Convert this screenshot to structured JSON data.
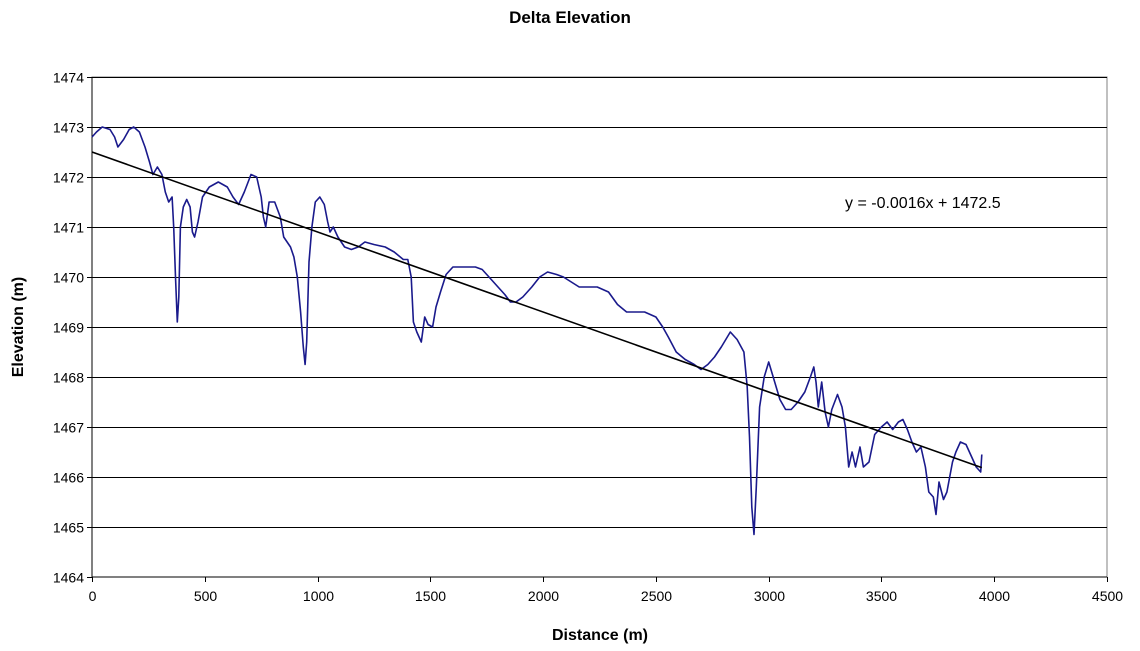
{
  "chart_data": {
    "type": "line",
    "title": "Delta Elevation",
    "xlabel": "Distance (m)",
    "ylabel": "Elevation (m)",
    "xlim": [
      0,
      4500
    ],
    "ylim": [
      1464,
      1474
    ],
    "x_ticks": [
      0,
      500,
      1000,
      1500,
      2000,
      2500,
      3000,
      3500,
      4000,
      4500
    ],
    "y_ticks": [
      1464,
      1465,
      1466,
      1467,
      1468,
      1469,
      1470,
      1471,
      1472,
      1473,
      1474
    ],
    "grid": true,
    "legend": "none",
    "series": [
      {
        "color": "#1a1a8c",
        "points": [
          [
            0,
            1472.8
          ],
          [
            20,
            1472.9
          ],
          [
            45,
            1473.0
          ],
          [
            80,
            1472.95
          ],
          [
            100,
            1472.8
          ],
          [
            115,
            1472.6
          ],
          [
            140,
            1472.75
          ],
          [
            165,
            1472.95
          ],
          [
            185,
            1473.0
          ],
          [
            210,
            1472.9
          ],
          [
            235,
            1472.6
          ],
          [
            255,
            1472.3
          ],
          [
            270,
            1472.05
          ],
          [
            290,
            1472.2
          ],
          [
            310,
            1472.05
          ],
          [
            325,
            1471.7
          ],
          [
            340,
            1471.5
          ],
          [
            355,
            1471.6
          ],
          [
            362,
            1471.0
          ],
          [
            370,
            1470.0
          ],
          [
            378,
            1469.1
          ],
          [
            385,
            1469.6
          ],
          [
            392,
            1471.0
          ],
          [
            405,
            1471.4
          ],
          [
            420,
            1471.55
          ],
          [
            435,
            1471.4
          ],
          [
            445,
            1470.9
          ],
          [
            455,
            1470.8
          ],
          [
            470,
            1471.1
          ],
          [
            490,
            1471.6
          ],
          [
            520,
            1471.8
          ],
          [
            560,
            1471.9
          ],
          [
            600,
            1471.8
          ],
          [
            625,
            1471.6
          ],
          [
            650,
            1471.45
          ],
          [
            675,
            1471.7
          ],
          [
            705,
            1472.05
          ],
          [
            730,
            1472.0
          ],
          [
            750,
            1471.6
          ],
          [
            760,
            1471.2
          ],
          [
            770,
            1471.0
          ],
          [
            785,
            1471.5
          ],
          [
            810,
            1471.5
          ],
          [
            835,
            1471.2
          ],
          [
            850,
            1470.8
          ],
          [
            865,
            1470.7
          ],
          [
            880,
            1470.6
          ],
          [
            895,
            1470.4
          ],
          [
            910,
            1470.0
          ],
          [
            925,
            1469.3
          ],
          [
            937,
            1468.6
          ],
          [
            945,
            1468.25
          ],
          [
            952,
            1468.7
          ],
          [
            962,
            1470.3
          ],
          [
            975,
            1471.0
          ],
          [
            990,
            1471.5
          ],
          [
            1010,
            1471.6
          ],
          [
            1030,
            1471.45
          ],
          [
            1045,
            1471.1
          ],
          [
            1055,
            1470.9
          ],
          [
            1070,
            1471.0
          ],
          [
            1090,
            1470.8
          ],
          [
            1120,
            1470.6
          ],
          [
            1150,
            1470.55
          ],
          [
            1180,
            1470.6
          ],
          [
            1210,
            1470.7
          ],
          [
            1250,
            1470.65
          ],
          [
            1300,
            1470.6
          ],
          [
            1340,
            1470.5
          ],
          [
            1380,
            1470.35
          ],
          [
            1400,
            1470.35
          ],
          [
            1415,
            1470.0
          ],
          [
            1425,
            1469.1
          ],
          [
            1440,
            1468.9
          ],
          [
            1460,
            1468.7
          ],
          [
            1475,
            1469.2
          ],
          [
            1490,
            1469.05
          ],
          [
            1510,
            1469.0
          ],
          [
            1525,
            1469.4
          ],
          [
            1545,
            1469.7
          ],
          [
            1570,
            1470.05
          ],
          [
            1600,
            1470.2
          ],
          [
            1650,
            1470.2
          ],
          [
            1700,
            1470.2
          ],
          [
            1730,
            1470.15
          ],
          [
            1760,
            1470.0
          ],
          [
            1800,
            1469.8
          ],
          [
            1830,
            1469.65
          ],
          [
            1855,
            1469.5
          ],
          [
            1880,
            1469.5
          ],
          [
            1910,
            1469.6
          ],
          [
            1950,
            1469.8
          ],
          [
            1985,
            1470.0
          ],
          [
            2020,
            1470.1
          ],
          [
            2060,
            1470.05
          ],
          [
            2090,
            1470.0
          ],
          [
            2125,
            1469.9
          ],
          [
            2160,
            1469.8
          ],
          [
            2200,
            1469.8
          ],
          [
            2240,
            1469.8
          ],
          [
            2290,
            1469.7
          ],
          [
            2330,
            1469.45
          ],
          [
            2370,
            1469.3
          ],
          [
            2410,
            1469.3
          ],
          [
            2450,
            1469.3
          ],
          [
            2500,
            1469.2
          ],
          [
            2530,
            1469.0
          ],
          [
            2555,
            1468.8
          ],
          [
            2590,
            1468.5
          ],
          [
            2630,
            1468.35
          ],
          [
            2670,
            1468.25
          ],
          [
            2700,
            1468.15
          ],
          [
            2730,
            1468.25
          ],
          [
            2760,
            1468.4
          ],
          [
            2790,
            1468.6
          ],
          [
            2830,
            1468.9
          ],
          [
            2860,
            1468.75
          ],
          [
            2890,
            1468.5
          ],
          [
            2905,
            1467.8
          ],
          [
            2915,
            1466.8
          ],
          [
            2925,
            1465.4
          ],
          [
            2935,
            1464.85
          ],
          [
            2945,
            1465.8
          ],
          [
            2960,
            1467.4
          ],
          [
            2980,
            1468.0
          ],
          [
            3000,
            1468.3
          ],
          [
            3020,
            1468.0
          ],
          [
            3050,
            1467.55
          ],
          [
            3075,
            1467.35
          ],
          [
            3100,
            1467.35
          ],
          [
            3130,
            1467.5
          ],
          [
            3160,
            1467.7
          ],
          [
            3185,
            1468.0
          ],
          [
            3200,
            1468.2
          ],
          [
            3210,
            1467.9
          ],
          [
            3220,
            1467.4
          ],
          [
            3235,
            1467.9
          ],
          [
            3250,
            1467.3
          ],
          [
            3265,
            1467.0
          ],
          [
            3280,
            1467.35
          ],
          [
            3305,
            1467.65
          ],
          [
            3325,
            1467.4
          ],
          [
            3340,
            1467.0
          ],
          [
            3355,
            1466.2
          ],
          [
            3370,
            1466.5
          ],
          [
            3385,
            1466.2
          ],
          [
            3405,
            1466.6
          ],
          [
            3420,
            1466.2
          ],
          [
            3445,
            1466.3
          ],
          [
            3470,
            1466.85
          ],
          [
            3500,
            1467.0
          ],
          [
            3525,
            1467.1
          ],
          [
            3550,
            1466.95
          ],
          [
            3575,
            1467.1
          ],
          [
            3595,
            1467.15
          ],
          [
            3615,
            1466.95
          ],
          [
            3635,
            1466.7
          ],
          [
            3655,
            1466.5
          ],
          [
            3675,
            1466.6
          ],
          [
            3695,
            1466.2
          ],
          [
            3710,
            1465.7
          ],
          [
            3730,
            1465.6
          ],
          [
            3742,
            1465.25
          ],
          [
            3755,
            1465.9
          ],
          [
            3775,
            1465.55
          ],
          [
            3790,
            1465.7
          ],
          [
            3815,
            1466.3
          ],
          [
            3830,
            1466.5
          ],
          [
            3850,
            1466.7
          ],
          [
            3875,
            1466.65
          ],
          [
            3900,
            1466.4
          ],
          [
            3920,
            1466.2
          ],
          [
            3940,
            1466.1
          ],
          [
            3945,
            1466.45
          ]
        ]
      }
    ],
    "trendline": {
      "equation_label": "y = -0.0016x + 1472.5",
      "slope": -0.0016,
      "intercept": 1472.5,
      "x_range": [
        0,
        3945
      ],
      "color": "#000000"
    }
  }
}
